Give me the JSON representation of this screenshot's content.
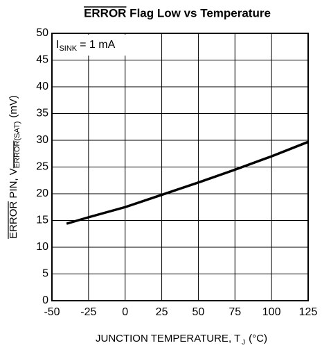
{
  "chart_data": {
    "type": "line",
    "title": "ERROR Flag Low vs Temperature",
    "title_overline": "ERROR",
    "x_label": {
      "text": "JUNCTION TEMPERATURE, T",
      "subscript": "J",
      "suffix": "(°C)"
    },
    "y_label": {
      "text": "ERROR PIN, V",
      "subscript": "ERROR(SAT)",
      "suffix": "(mV)"
    },
    "annotation": {
      "text": "I",
      "subscript": "SINK",
      "suffix": "= 1 mA"
    },
    "x": [
      -40,
      -25,
      0,
      25,
      50,
      75,
      100,
      125
    ],
    "series": [
      {
        "name": "V_ERROR(SAT)",
        "color": "#000000",
        "values": [
          14.4,
          15.6,
          17.5,
          19.8,
          22.1,
          24.5,
          27.0,
          29.7
        ]
      }
    ],
    "xlim": [
      -50,
      125
    ],
    "xticks": [
      -50,
      -25,
      0,
      25,
      50,
      75,
      100,
      125
    ],
    "ylim": [
      0,
      50
    ],
    "yticks": [
      0,
      5,
      10,
      15,
      20,
      25,
      30,
      35,
      40,
      45,
      50
    ],
    "grid": true
  }
}
